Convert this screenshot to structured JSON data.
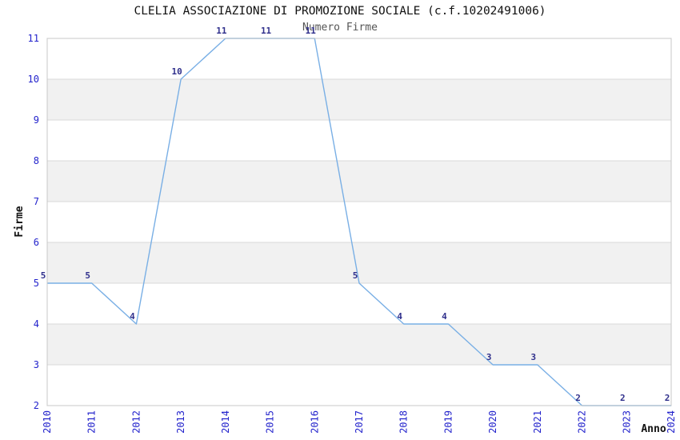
{
  "chart_data": {
    "type": "line",
    "title": "CLELIA ASSOCIAZIONE DI PROMOZIONE SOCIALE (c.f.10202491006)",
    "subtitle": "Numero Firme",
    "xlabel": "Anno",
    "ylabel": "Firme",
    "x": [
      2010,
      2011,
      2012,
      2013,
      2014,
      2015,
      2016,
      2017,
      2018,
      2019,
      2020,
      2021,
      2022,
      2023,
      2024
    ],
    "series": [
      {
        "name": "Numero Firme",
        "values": [
          5,
          5,
          4,
          10,
          11,
          11,
          11,
          5,
          4,
          4,
          3,
          3,
          2,
          2,
          2
        ]
      }
    ],
    "ylim": [
      2,
      11
    ],
    "yticks": [
      2,
      3,
      4,
      5,
      6,
      7,
      8,
      9,
      10,
      11
    ],
    "grid": "horizontal",
    "zebra_bands": true,
    "legend": "none",
    "data_labels_visible": true
  },
  "colors": {
    "background": "#ffffff",
    "line": "#79afe5",
    "tick_label": "#2323cc",
    "data_label": "#30308c",
    "title": "#111111",
    "subtitle": "#555555",
    "axis_title": "#111111",
    "band": "#f1f1f1",
    "grid": "#d9d9d9",
    "border": "#c8c8c8"
  }
}
